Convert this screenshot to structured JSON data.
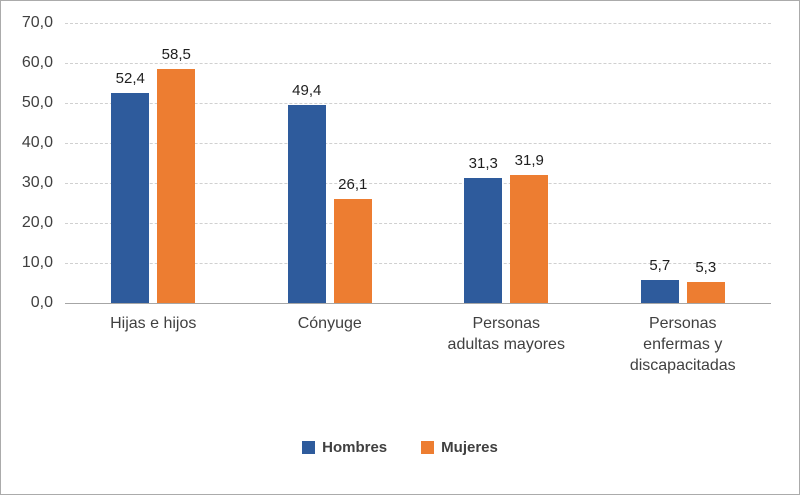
{
  "chart": {
    "background": "#FFFFFF",
    "border_color": "#ABABAB",
    "gridline_color": "#D0D0D0",
    "axis_text_color": "#404040",
    "data_label_color": "#1F1F1F"
  },
  "chart_data": {
    "type": "bar",
    "title": "",
    "xlabel": "",
    "ylabel": "",
    "categories": [
      "Hijas e hijos",
      "Cónyuge",
      "Personas adultas mayores",
      "Personas enfermas y discapacitadas"
    ],
    "category_lines": [
      [
        "Hijas e hijos"
      ],
      [
        "Cónyuge"
      ],
      [
        "Personas",
        "adultas mayores"
      ],
      [
        "Personas",
        "enfermas y",
        "discapacitadas"
      ]
    ],
    "series": [
      {
        "name": "Hombres",
        "color": "#2E5B9C",
        "values": [
          52.4,
          49.4,
          31.3,
          5.7
        ],
        "labels": [
          "52,4",
          "49,4",
          "31,3",
          "5,7"
        ]
      },
      {
        "name": "Mujeres",
        "color": "#ED7D31",
        "values": [
          58.5,
          26.1,
          31.9,
          5.3
        ],
        "labels": [
          "58,5",
          "26,1",
          "31,9",
          "5,3"
        ]
      }
    ],
    "ylim": [
      0,
      70
    ],
    "ytick_step": 10,
    "ytick_labels": [
      "0,0",
      "10,0",
      "20,0",
      "30,0",
      "40,0",
      "50,0",
      "60,0",
      "70,0"
    ],
    "grid": "horizontal-dashed",
    "legend_position": "bottom"
  }
}
